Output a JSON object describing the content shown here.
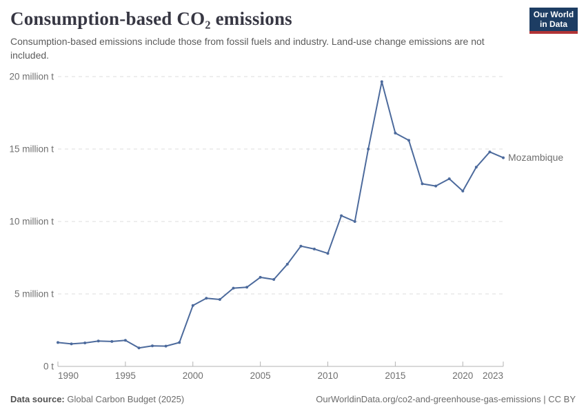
{
  "header": {
    "title": "Consumption-based CO₂ emissions",
    "subtitle": "Consumption-based emissions include those from fossil fuels and industry. Land-use change emissions are not included.",
    "logo": {
      "line1": "Our World",
      "line2": "in Data"
    }
  },
  "chart_data": {
    "type": "line",
    "title": "Consumption-based CO₂ emissions",
    "xlabel": "",
    "ylabel": "",
    "xlim": [
      1990,
      2023
    ],
    "ylim": [
      0,
      20
    ],
    "grid": "horizontal-dashed",
    "legend_position": "end-of-line-label",
    "x": [
      1990,
      1991,
      1992,
      1993,
      1994,
      1995,
      1996,
      1997,
      1998,
      1999,
      2000,
      2001,
      2002,
      2003,
      2004,
      2005,
      2006,
      2007,
      2008,
      2009,
      2010,
      2011,
      2012,
      2013,
      2014,
      2015,
      2016,
      2017,
      2018,
      2019,
      2020,
      2021,
      2022,
      2023
    ],
    "series": [
      {
        "name": "Mozambique",
        "unit": "million t",
        "color": "#4C6A9C",
        "values": [
          1.65,
          1.55,
          1.62,
          1.75,
          1.72,
          1.8,
          1.27,
          1.42,
          1.4,
          1.65,
          4.2,
          4.7,
          4.62,
          5.4,
          5.46,
          6.15,
          6.0,
          7.05,
          8.3,
          8.1,
          7.8,
          10.4,
          10.0,
          15.0,
          19.65,
          16.1,
          15.6,
          12.6,
          12.45,
          12.95,
          12.1,
          13.75,
          14.8,
          14.4
        ]
      }
    ],
    "x_ticks": [
      {
        "value": 1990,
        "label": "1990",
        "anchor": "start"
      },
      {
        "value": 1995,
        "label": "1995",
        "anchor": "middle"
      },
      {
        "value": 2000,
        "label": "2000",
        "anchor": "middle"
      },
      {
        "value": 2005,
        "label": "2005",
        "anchor": "middle"
      },
      {
        "value": 2010,
        "label": "2010",
        "anchor": "middle"
      },
      {
        "value": 2015,
        "label": "2015",
        "anchor": "middle"
      },
      {
        "value": 2020,
        "label": "2020",
        "anchor": "middle"
      },
      {
        "value": 2023,
        "label": "2023",
        "anchor": "end"
      }
    ],
    "y_ticks": [
      {
        "value": 0,
        "label": "0 t"
      },
      {
        "value": 5,
        "label": "5 million t"
      },
      {
        "value": 10,
        "label": "10 million t"
      },
      {
        "value": 15,
        "label": "15 million t"
      },
      {
        "value": 20,
        "label": "20 million t"
      }
    ]
  },
  "colors": {
    "line": "#4C6A9C",
    "grid": "#dcdcdc",
    "axis": "#b3b3b3",
    "tick_text": "#6f6f6f",
    "logo_bg": "#1d3d63",
    "logo_bar": "#b13436"
  },
  "footer": {
    "source_label": "Data source:",
    "source_value": " Global Carbon Budget (2025)",
    "rights": "OurWorldinData.org/co2-and-greenhouse-gas-emissions | CC BY"
  }
}
